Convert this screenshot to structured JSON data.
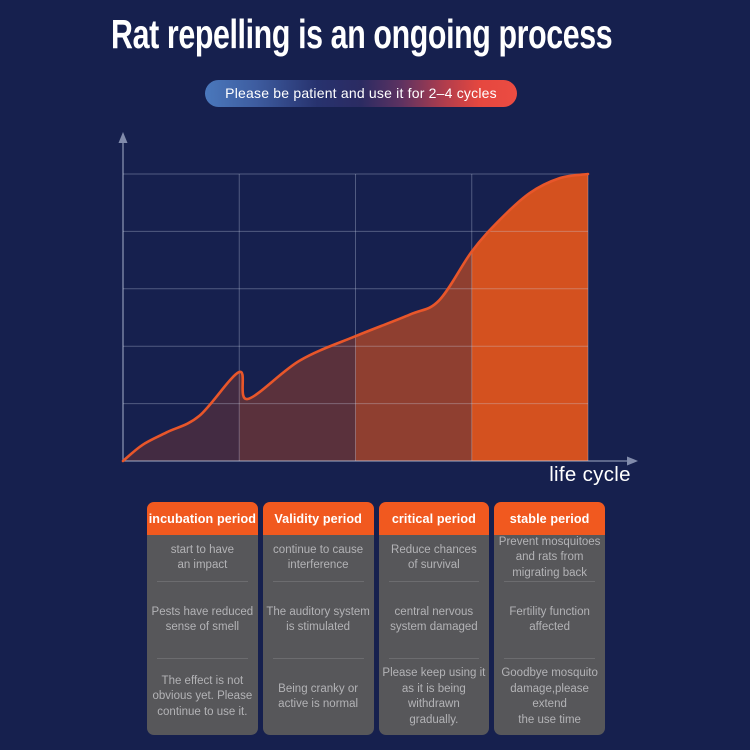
{
  "title": "Rat repelling is an ongoing process",
  "banner": {
    "text": "Please be patient and use it for 2–4 cycles"
  },
  "chart_data": {
    "type": "area",
    "title": "",
    "xlabel": "life cycle",
    "ylabel": "",
    "x_range_normalized": [
      0,
      1
    ],
    "y_range_normalized": [
      0,
      1
    ],
    "grid": {
      "h_divisions": 5,
      "v_divisions": 4,
      "on": true
    },
    "legend": "none",
    "points_normalized": [
      [
        0,
        0
      ],
      [
        0.042,
        0.056
      ],
      [
        0.094,
        0.1
      ],
      [
        0.164,
        0.157
      ],
      [
        0.268,
        0.216
      ],
      [
        0.25,
        0.31
      ],
      [
        0.38,
        0.35
      ],
      [
        0.5,
        0.435
      ],
      [
        0.617,
        0.51
      ],
      [
        0.68,
        0.56
      ],
      [
        0.75,
        0.73
      ],
      [
        0.81,
        0.84
      ],
      [
        0.875,
        0.934
      ],
      [
        0.94,
        0.986
      ],
      [
        1,
        1
      ]
    ],
    "stages": [
      "incubation period",
      "Validity period",
      "critical period",
      "stable period"
    ],
    "band_opacities": [
      0.24,
      0.36,
      0.64,
      1.0
    ],
    "colors": {
      "area": "#d4511f",
      "line": "#e8562a",
      "grid": "rgba(203,211,234,0.33)",
      "axis": "rgba(203,211,234,0.62)",
      "arrow": "#818bab"
    }
  },
  "cards": [
    {
      "header": "incubation period",
      "rows": [
        "start to have\nan impact",
        "Pests have reduced\nsense of smell",
        "The effect is not\nobvious yet. Please\ncontinue to use it."
      ]
    },
    {
      "header": "Validity period",
      "rows": [
        "continue to cause\ninterference",
        "The auditory system\nis stimulated",
        "Being cranky or\nactive is normal"
      ]
    },
    {
      "header": "critical period",
      "rows": [
        "Reduce chances\nof survival",
        "central nervous\nsystem damaged",
        "Please keep using it\nas it is being\nwithdrawn\ngradually."
      ]
    },
    {
      "header": "stable period",
      "rows": [
        "Prevent mosquitoes\nand rats from\nmigrating back",
        "Fertility function\naffected",
        "Goodbye mosquito\ndamage,please\nextend\nthe use time"
      ]
    }
  ],
  "colors": {
    "background": "#16204e",
    "title_text": "#ffffff",
    "banner_gradient_left": "#4a78bc",
    "banner_gradient_right": "#eb4c42",
    "card_header": "#f1591f",
    "card_body": "#57575a",
    "card_text": "#b3b3b6",
    "divider": "#6c6c6f"
  }
}
